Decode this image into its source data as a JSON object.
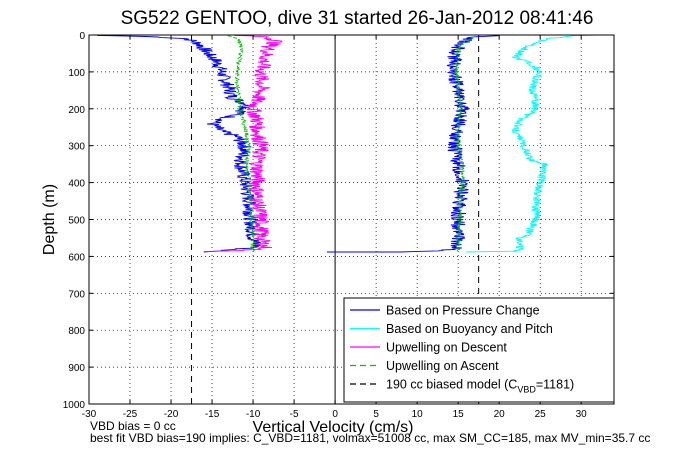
{
  "chart_data": {
    "type": "line",
    "title": "SG522 GENTOO, dive 31 started 26-Jan-2012 08:41:46",
    "xlabel": "Vertical Velocity (cm/s)",
    "ylabel": "Depth (m)",
    "xlim": [
      -30,
      34
    ],
    "ylim": [
      1000,
      0
    ],
    "xticks": [
      "-30",
      "-25",
      "-20",
      "-15",
      "-10",
      "-5",
      "0",
      "5",
      "10",
      "15",
      "20",
      "25",
      "30"
    ],
    "xtick_values": [
      -30,
      -25,
      -20,
      -15,
      -10,
      -5,
      0,
      5,
      10,
      15,
      20,
      25,
      30
    ],
    "yticks": [
      "0",
      "100",
      "200",
      "300",
      "400",
      "500",
      "600",
      "700",
      "800",
      "900",
      "1000"
    ],
    "ytick_values": [
      0,
      100,
      200,
      300,
      400,
      500,
      600,
      700,
      800,
      900,
      1000
    ],
    "grid": true,
    "legend_position": "bottom-right",
    "zero_line_x": 0,
    "model_lines_x": [
      -17.5,
      17.5
    ],
    "series": [
      {
        "name": "Based on Pressure Change",
        "color": "#0000ff",
        "style": "solid",
        "noise": 0.9,
        "points": [
          [
            -29,
            1
          ],
          [
            -23,
            4
          ],
          [
            -18,
            10
          ],
          [
            -16.5,
            25
          ],
          [
            -15.5,
            50
          ],
          [
            -14.5,
            70
          ],
          [
            -14,
            90
          ],
          [
            -13.5,
            120
          ],
          [
            -13,
            140
          ],
          [
            -12.5,
            170
          ],
          [
            -10.5,
            190
          ],
          [
            -11.5,
            210
          ],
          [
            -15,
            240
          ],
          [
            -14,
            260
          ],
          [
            -12,
            275
          ],
          [
            -11,
            300
          ],
          [
            -11.5,
            350
          ],
          [
            -11,
            400
          ],
          [
            -10.5,
            450
          ],
          [
            -10.3,
            500
          ],
          [
            -10,
            550
          ],
          [
            -9.5,
            575
          ],
          [
            -14,
            585
          ],
          [
            -16,
            588
          ]
        ]
      },
      {
        "name": "Based on Pressure Change",
        "color": "#0000ff",
        "style": "solid",
        "noise": 0.9,
        "points": [
          [
            -1,
            588
          ],
          [
            8,
            588
          ],
          [
            12,
            585
          ],
          [
            15,
            580
          ],
          [
            15,
            550
          ],
          [
            15,
            500
          ],
          [
            15.2,
            450
          ],
          [
            15.5,
            400
          ],
          [
            15,
            350
          ],
          [
            14.5,
            300
          ],
          [
            15,
            250
          ],
          [
            15.5,
            200
          ],
          [
            15,
            150
          ],
          [
            14.5,
            100
          ],
          [
            14.5,
            50
          ],
          [
            15.5,
            20
          ],
          [
            17,
            5
          ],
          [
            20,
            2
          ]
        ]
      },
      {
        "name": "Based on Buoyancy and Pitch",
        "color": "#00ffff",
        "style": "solid",
        "noise": 0.5,
        "points": [
          [
            16,
            588
          ],
          [
            22,
            586
          ],
          [
            22.5,
            580
          ],
          [
            22.5,
            550
          ],
          [
            23.5,
            540
          ],
          [
            24.5,
            500
          ],
          [
            24.5,
            450
          ],
          [
            25,
            400
          ],
          [
            25.5,
            350
          ],
          [
            24,
            340
          ],
          [
            23,
            300
          ],
          [
            22,
            260
          ],
          [
            22.5,
            230
          ],
          [
            24,
            210
          ],
          [
            24.5,
            190
          ],
          [
            24,
            150
          ],
          [
            24.5,
            120
          ],
          [
            25,
            100
          ],
          [
            24,
            80
          ],
          [
            22,
            60
          ],
          [
            23.5,
            30
          ],
          [
            26,
            10
          ],
          [
            29,
            2
          ],
          [
            32,
            0
          ]
        ]
      },
      {
        "name": "Upwelling on Descent",
        "color": "#ff00ff",
        "style": "solid",
        "noise": 1.0,
        "points": [
          [
            -12,
            1
          ],
          [
            -8.5,
            5
          ],
          [
            -7,
            15
          ],
          [
            -8,
            30
          ],
          [
            -8.5,
            60
          ],
          [
            -9,
            100
          ],
          [
            -9,
            150
          ],
          [
            -10,
            200
          ],
          [
            -9.5,
            230
          ],
          [
            -9.5,
            260
          ],
          [
            -9,
            300
          ],
          [
            -9.5,
            350
          ],
          [
            -9.5,
            400
          ],
          [
            -9.5,
            450
          ],
          [
            -9,
            500
          ],
          [
            -9,
            550
          ],
          [
            -8.5,
            580
          ],
          [
            -13,
            585
          ],
          [
            -16,
            587
          ]
        ]
      },
      {
        "name": "Upwelling on Ascent",
        "color": "#00c000",
        "style": "dashed",
        "noise": 0.25,
        "points": [
          [
            -13,
            1
          ],
          [
            -12,
            8
          ],
          [
            -11.5,
            25
          ],
          [
            -11.5,
            60
          ],
          [
            -12,
            100
          ],
          [
            -11.8,
            150
          ],
          [
            -11.5,
            200
          ],
          [
            -11,
            250
          ],
          [
            -10.5,
            300
          ],
          [
            -10.8,
            350
          ],
          [
            -10.5,
            400
          ],
          [
            -10.3,
            450
          ],
          [
            -10.2,
            500
          ],
          [
            -10,
            550
          ],
          [
            -10,
            585
          ]
        ]
      },
      {
        "name": "Upwelling on Ascent",
        "color": "#00c000",
        "style": "dashed",
        "noise": 0.25,
        "points": [
          [
            15,
            585
          ],
          [
            15,
            550
          ],
          [
            15.2,
            500
          ],
          [
            15.3,
            450
          ],
          [
            15.5,
            400
          ],
          [
            15.5,
            350
          ],
          [
            15,
            300
          ],
          [
            15,
            250
          ],
          [
            15.3,
            200
          ],
          [
            15,
            150
          ],
          [
            14.8,
            100
          ],
          [
            14.8,
            60
          ],
          [
            15.5,
            20
          ],
          [
            17,
            5
          ]
        ]
      },
      {
        "name": "190 cc biased model (C",
        "name_sub": "VBD",
        "name_tail": "=1181)",
        "color": "#000000",
        "style": "dashed",
        "noise": 0,
        "points": []
      }
    ]
  },
  "legend": {
    "items": [
      {
        "label": "Based on Pressure Change",
        "color": "#0000ff",
        "style": "solid"
      },
      {
        "label": "Based on Buoyancy and Pitch",
        "color": "#00ffff",
        "style": "solid"
      },
      {
        "label": "Upwelling on Descent",
        "color": "#ff00ff",
        "style": "solid"
      },
      {
        "label": "Upwelling on Ascent",
        "color": "#00c000",
        "style": "dashed"
      },
      {
        "label": "190 cc biased model (C",
        "sub": "VBD",
        "tail": "=1181)",
        "color": "#000000",
        "style": "dashed"
      }
    ]
  },
  "footer": {
    "line1": "VBD bias = 0 cc",
    "line2": "best fit VBD bias=190 implies: C_VBD=1181, volmax=51008 cc, max SM_CC=185, max MV_min=35.7 cc"
  }
}
